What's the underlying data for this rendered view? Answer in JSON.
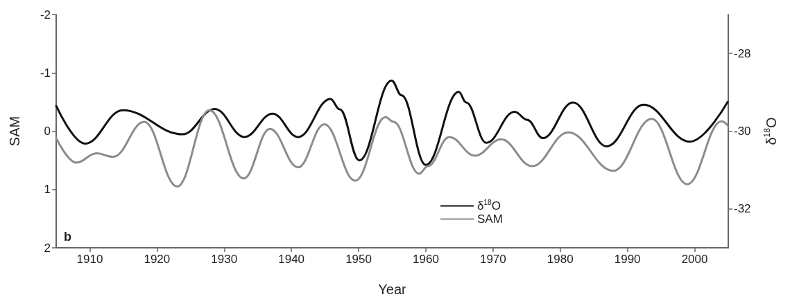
{
  "chart_data": {
    "type": "line",
    "xlabel": "Year",
    "ylabel": "SAM",
    "y2label": "δ$^{18}$O",
    "annotations": [
      "b"
    ],
    "xlim": [
      1905,
      2005
    ],
    "xticks": [
      1910,
      1920,
      1930,
      1940,
      1950,
      1960,
      1970,
      1980,
      1990,
      2000
    ],
    "ylim": [
      2,
      -2
    ],
    "yticks": [
      -2,
      -1,
      0,
      1,
      2
    ],
    "y2lim": [
      -33,
      -27
    ],
    "y2ticks": [
      -32,
      -30,
      -28
    ],
    "grid": false,
    "legend": "bottom",
    "marker": "none",
    "line_style": "solid",
    "series": [
      {
        "name": "δ$^{18}$O",
        "color": "#111111",
        "axis": "y2",
        "x": [
          1905,
          1909.3,
          1914.9,
          1923.8,
          1928.6,
          1933,
          1937.2,
          1941,
          1945.8,
          1947.2,
          1950.1,
          1954.9,
          1956.4,
          1960,
          1964.9,
          1966,
          1969,
          1973.2,
          1975.1,
          1977.4,
          1981.9,
          1986.9,
          1992.4,
          1999.3,
          2004.9
        ],
        "values": [
          -29.35,
          -30.32,
          -29.46,
          -30.08,
          -29.43,
          -30.15,
          -29.55,
          -30.15,
          -29.17,
          -29.44,
          -30.75,
          -28.7,
          -29.08,
          -30.87,
          -28.99,
          -29.26,
          -30.3,
          -29.5,
          -29.71,
          -30.18,
          -29.26,
          -30.39,
          -29.32,
          -30.27,
          -29.25
        ]
      },
      {
        "name": "SAM",
        "color": "#8c8c8c",
        "x": [
          1905,
          1908,
          1911,
          1913.5,
          1918.1,
          1923,
          1927.8,
          1932.9,
          1936.8,
          1941,
          1944.9,
          1949.5,
          1954,
          1955.2,
          1959,
          1960.3,
          1963.5,
          1967.3,
          1971.2,
          1975.8,
          1981.2,
          1987.9,
          1993.6,
          1998.9,
          2004,
          2005
        ],
        "values": [
          0.12,
          0.54,
          0.38,
          0.44,
          -0.16,
          0.95,
          -0.36,
          0.81,
          -0.04,
          0.62,
          -0.12,
          0.85,
          -0.24,
          -0.16,
          0.73,
          0.6,
          0.1,
          0.42,
          0.14,
          0.6,
          0.02,
          0.68,
          -0.21,
          0.91,
          -0.17,
          -0.09
        ]
      }
    ]
  }
}
